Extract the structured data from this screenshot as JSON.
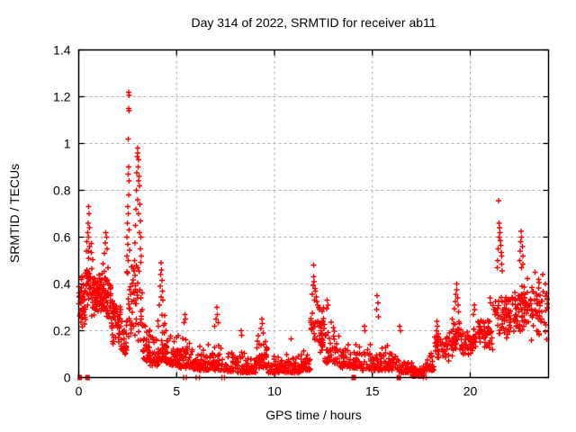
{
  "chart_data": {
    "type": "scatter",
    "title": "Day 314 of 2022, SRMTID for receiver ab11",
    "xlabel": "GPS time / hours",
    "ylabel": "SRMTID / TECUs",
    "xlim": [
      0,
      24
    ],
    "ylim": [
      0,
      1.4
    ],
    "xticks": [
      0,
      5,
      10,
      15,
      20
    ],
    "yticks": [
      0,
      0.2,
      0.4,
      0.6,
      0.8,
      1,
      1.2,
      1.4
    ],
    "grid": true,
    "legend": "none",
    "marker": {
      "glyph": "plus",
      "color": "#ff0000",
      "size": 6,
      "stroke_width": 1.4
    },
    "grid_color": "#b0b0b0",
    "border_color": "#000000",
    "background": "#ffffff",
    "outlier_points": [
      [
        0.5,
        0.73
      ],
      [
        0.52,
        0.7
      ],
      [
        0.48,
        0.66
      ],
      [
        0.55,
        0.64
      ],
      [
        0.45,
        0.62
      ],
      [
        0.5,
        0.6
      ],
      [
        0.42,
        0.58
      ],
      [
        0.56,
        0.56
      ],
      [
        0.4,
        0.54
      ],
      [
        1.38,
        0.62
      ],
      [
        1.42,
        0.6
      ],
      [
        1.35,
        0.575
      ],
      [
        1.45,
        0.55
      ],
      [
        1.32,
        0.53
      ],
      [
        2.55,
        1.22
      ],
      [
        2.57,
        1.205
      ],
      [
        2.55,
        1.15
      ],
      [
        2.58,
        1.14
      ],
      [
        2.54,
        1.02
      ],
      [
        2.56,
        0.9
      ],
      [
        2.52,
        0.87
      ],
      [
        2.58,
        0.84
      ],
      [
        2.55,
        0.78
      ],
      [
        2.5,
        0.73
      ],
      [
        2.53,
        0.7
      ],
      [
        2.48,
        0.66
      ],
      [
        2.57,
        0.63
      ],
      [
        2.45,
        0.6
      ],
      [
        2.5,
        0.57
      ],
      [
        2.6,
        0.545
      ],
      [
        2.47,
        0.52
      ],
      [
        2.52,
        0.5
      ],
      [
        3.0,
        0.98
      ],
      [
        3.02,
        0.96
      ],
      [
        2.98,
        0.945
      ],
      [
        3.05,
        0.93
      ],
      [
        3.03,
        0.9
      ],
      [
        2.96,
        0.875
      ],
      [
        3.08,
        0.86
      ],
      [
        3.06,
        0.84
      ],
      [
        3.1,
        0.82
      ],
      [
        2.95,
        0.8
      ],
      [
        3.0,
        0.76
      ],
      [
        3.12,
        0.74
      ],
      [
        2.93,
        0.72
      ],
      [
        3.05,
        0.7
      ],
      [
        3.15,
        0.67
      ],
      [
        2.9,
        0.65
      ],
      [
        3.1,
        0.62
      ],
      [
        3.18,
        0.6
      ],
      [
        2.88,
        0.575
      ],
      [
        3.15,
        0.55
      ],
      [
        3.2,
        0.52
      ],
      [
        2.86,
        0.5
      ],
      [
        4.2,
        0.49
      ],
      [
        4.22,
        0.46
      ],
      [
        4.18,
        0.44
      ],
      [
        4.25,
        0.415
      ],
      [
        4.15,
        0.39
      ],
      [
        4.28,
        0.37
      ],
      [
        4.2,
        0.345
      ],
      [
        4.3,
        0.33
      ],
      [
        4.12,
        0.31
      ],
      [
        5.42,
        0.27
      ],
      [
        5.45,
        0.25
      ],
      [
        5.38,
        0.235
      ],
      [
        7.05,
        0.3
      ],
      [
        7.08,
        0.27
      ],
      [
        7.0,
        0.25
      ],
      [
        7.12,
        0.235
      ],
      [
        6.95,
        0.22
      ],
      [
        8.3,
        0.2
      ],
      [
        8.33,
        0.18
      ],
      [
        9.35,
        0.25
      ],
      [
        9.38,
        0.23
      ],
      [
        9.3,
        0.21
      ],
      [
        9.42,
        0.19
      ],
      [
        10.85,
        0.165
      ],
      [
        12.0,
        0.48
      ],
      [
        12.0,
        0.43
      ],
      [
        12.03,
        0.41
      ],
      [
        11.97,
        0.395
      ],
      [
        12.06,
        0.38
      ],
      [
        12.1,
        0.37
      ],
      [
        11.94,
        0.355
      ],
      [
        12.13,
        0.345
      ],
      [
        12.05,
        0.33
      ],
      [
        12.16,
        0.325
      ],
      [
        12.2,
        0.31
      ],
      [
        12.25,
        0.3
      ],
      [
        12.3,
        0.29
      ],
      [
        12.7,
        0.33
      ],
      [
        12.73,
        0.31
      ],
      [
        12.67,
        0.295
      ],
      [
        14.6,
        0.22
      ],
      [
        14.63,
        0.2
      ],
      [
        15.25,
        0.35
      ],
      [
        15.28,
        0.32
      ],
      [
        15.22,
        0.29
      ],
      [
        15.3,
        0.26
      ],
      [
        16.4,
        0.22
      ],
      [
        16.43,
        0.2
      ],
      [
        18.3,
        0.24
      ],
      [
        18.33,
        0.22
      ],
      [
        18.27,
        0.2
      ],
      [
        19.3,
        0.4
      ],
      [
        19.32,
        0.375
      ],
      [
        19.27,
        0.355
      ],
      [
        19.35,
        0.34
      ],
      [
        19.24,
        0.325
      ],
      [
        19.38,
        0.31
      ],
      [
        19.2,
        0.295
      ],
      [
        19.4,
        0.28
      ],
      [
        20.2,
        0.31
      ],
      [
        20.23,
        0.29
      ],
      [
        20.17,
        0.27
      ],
      [
        21.0,
        0.34
      ],
      [
        21.03,
        0.32
      ],
      [
        21.45,
        0.755
      ],
      [
        21.48,
        0.66
      ],
      [
        21.5,
        0.64
      ],
      [
        21.52,
        0.62
      ],
      [
        21.47,
        0.6
      ],
      [
        21.54,
        0.585
      ],
      [
        21.56,
        0.565
      ],
      [
        21.43,
        0.55
      ],
      [
        21.58,
        0.535
      ],
      [
        21.6,
        0.52
      ],
      [
        21.4,
        0.5
      ],
      [
        21.62,
        0.485
      ],
      [
        21.38,
        0.47
      ],
      [
        21.64,
        0.455
      ],
      [
        22.6,
        0.625
      ],
      [
        22.63,
        0.6
      ],
      [
        22.58,
        0.58
      ],
      [
        22.66,
        0.56
      ],
      [
        22.55,
        0.54
      ],
      [
        22.68,
        0.52
      ],
      [
        22.52,
        0.5
      ],
      [
        22.7,
        0.485
      ],
      [
        22.62,
        0.47
      ],
      [
        23.3,
        0.45
      ],
      [
        23.5,
        0.42
      ],
      [
        23.7,
        0.44
      ],
      [
        23.85,
        0.4
      ],
      [
        23.9,
        0.36
      ]
    ],
    "density_bands": [
      [
        0.0,
        0.35,
        45,
        0.2,
        0.46,
        "mid"
      ],
      [
        0.35,
        0.75,
        45,
        0.22,
        0.58,
        "mid"
      ],
      [
        0.75,
        1.25,
        65,
        0.24,
        0.46,
        "mid"
      ],
      [
        1.25,
        1.65,
        50,
        0.22,
        0.5,
        "mid"
      ],
      [
        1.65,
        2.15,
        50,
        0.13,
        0.36,
        "mid"
      ],
      [
        2.15,
        2.45,
        30,
        0.1,
        0.28,
        "floor"
      ],
      [
        2.45,
        3.25,
        60,
        0.13,
        0.52,
        "mid"
      ],
      [
        3.25,
        3.65,
        42,
        0.07,
        0.28,
        "floor"
      ],
      [
        3.65,
        4.05,
        40,
        0.05,
        0.22,
        "floor"
      ],
      [
        4.05,
        4.45,
        40,
        0.07,
        0.3,
        "floor"
      ],
      [
        4.45,
        5.05,
        48,
        0.05,
        0.22,
        "floor"
      ],
      [
        5.05,
        5.85,
        55,
        0.04,
        0.2,
        "floor"
      ],
      [
        5.85,
        6.55,
        52,
        0.03,
        0.16,
        "floor"
      ],
      [
        6.55,
        7.55,
        62,
        0.03,
        0.18,
        "floor"
      ],
      [
        7.55,
        9.05,
        95,
        0.02,
        0.12,
        "floor"
      ],
      [
        9.05,
        9.65,
        45,
        0.04,
        0.18,
        "floor"
      ],
      [
        9.65,
        11.35,
        105,
        0.02,
        0.11,
        "floor"
      ],
      [
        11.35,
        11.85,
        35,
        0.03,
        0.15,
        "floor"
      ],
      [
        11.85,
        12.55,
        55,
        0.08,
        0.32,
        "mid"
      ],
      [
        12.55,
        13.35,
        52,
        0.06,
        0.26,
        "floor"
      ],
      [
        13.35,
        14.25,
        52,
        0.04,
        0.17,
        "floor"
      ],
      [
        14.25,
        15.25,
        55,
        0.03,
        0.15,
        "floor"
      ],
      [
        15.25,
        16.35,
        62,
        0.03,
        0.15,
        "floor"
      ],
      [
        16.35,
        17.05,
        45,
        0.02,
        0.09,
        "floor"
      ],
      [
        17.05,
        17.65,
        52,
        0.005,
        0.055,
        "floor"
      ],
      [
        17.65,
        18.15,
        40,
        0.03,
        0.12,
        "floor"
      ],
      [
        18.15,
        19.05,
        52,
        0.06,
        0.2,
        "mid"
      ],
      [
        19.05,
        19.55,
        40,
        0.08,
        0.26,
        "mid"
      ],
      [
        19.55,
        20.35,
        52,
        0.08,
        0.22,
        "mid"
      ],
      [
        20.35,
        21.15,
        52,
        0.1,
        0.26,
        "mid"
      ],
      [
        21.15,
        21.95,
        50,
        0.13,
        0.42,
        "mid"
      ],
      [
        21.95,
        22.55,
        45,
        0.15,
        0.4,
        "mid"
      ],
      [
        22.55,
        23.05,
        42,
        0.17,
        0.45,
        "mid"
      ],
      [
        23.05,
        23.55,
        35,
        0.15,
        0.42,
        "mid"
      ],
      [
        23.55,
        23.95,
        18,
        0.15,
        0.4,
        "mid"
      ]
    ],
    "zero_square_hours": [
      0.05,
      0.45,
      14.05,
      16.35
    ],
    "zero_plus_hours": [
      5.35,
      5.5,
      6.0,
      6.15,
      7.3,
      7.45,
      17.6,
      17.75
    ]
  }
}
